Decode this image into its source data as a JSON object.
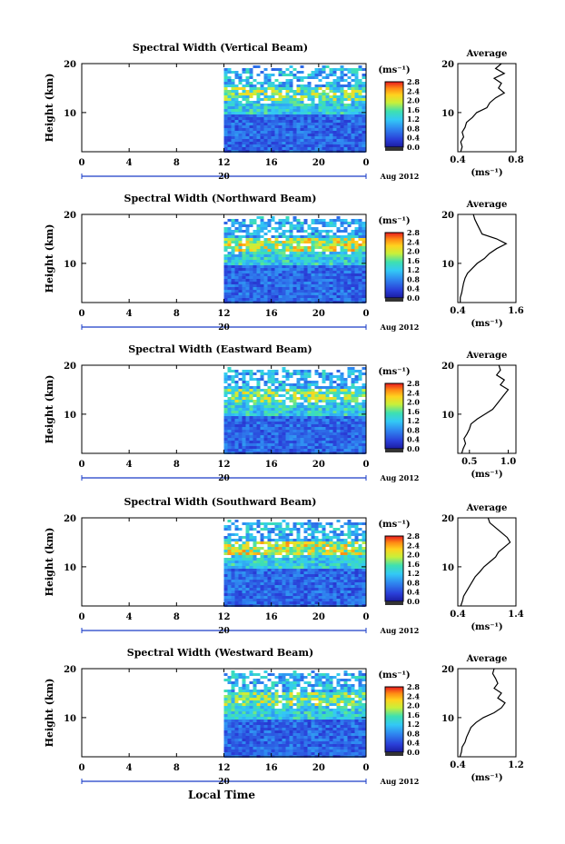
{
  "figure": {
    "bottom_xlabel": "Local Time",
    "date_label": "20",
    "month_label": "Aug 2012"
  },
  "chart_data": [
    {
      "type": "heatmap",
      "title": "Spectral Width (Vertical Beam)",
      "ylabel": "Height (km)",
      "xlim": [
        0,
        24
      ],
      "ylim": [
        2,
        20
      ],
      "x_ticks": [
        "0",
        "4",
        "8",
        "12",
        "16",
        "20",
        "0"
      ],
      "y_ticks": [
        "10",
        "20"
      ],
      "data_start_hour": 12,
      "colorbar": {
        "unit": "(ms⁻¹)",
        "ticks": [
          "0.0",
          "0.4",
          "0.8",
          "1.2",
          "1.6",
          "2.0",
          "2.4",
          "2.8"
        ]
      },
      "profile": {
        "title": "Average",
        "unit": "(ms⁻¹)",
        "xlim": [
          0.4,
          0.8
        ],
        "x_ticks": [
          "0.4",
          "0.8"
        ],
        "y_ticks": [
          "10",
          "20"
        ],
        "heights": [
          2,
          3,
          4,
          5,
          6,
          7,
          8,
          9,
          10,
          11,
          12,
          13,
          14,
          15,
          16,
          17,
          18,
          19,
          20
        ],
        "values": [
          0.42,
          0.43,
          0.42,
          0.44,
          0.43,
          0.45,
          0.46,
          0.5,
          0.53,
          0.6,
          0.62,
          0.66,
          0.72,
          0.68,
          0.7,
          0.65,
          0.72,
          0.66,
          0.7
        ]
      }
    },
    {
      "type": "heatmap",
      "title": "Spectral Width (Northward Beam)",
      "ylabel": "Height (km)",
      "xlim": [
        0,
        24
      ],
      "ylim": [
        2,
        20
      ],
      "x_ticks": [
        "0",
        "4",
        "8",
        "12",
        "16",
        "20",
        "0"
      ],
      "y_ticks": [
        "10",
        "20"
      ],
      "data_start_hour": 12,
      "colorbar": {
        "unit": "(ms⁻¹)",
        "ticks": [
          "0.0",
          "0.4",
          "0.8",
          "1.2",
          "1.6",
          "2.0",
          "2.4",
          "2.8"
        ]
      },
      "profile": {
        "title": "Average",
        "unit": "(ms⁻¹)",
        "xlim": [
          0.4,
          1.6
        ],
        "x_ticks": [
          "0.4",
          "1.6"
        ],
        "y_ticks": [
          "10",
          "20"
        ],
        "heights": [
          2,
          3,
          4,
          5,
          6,
          7,
          8,
          9,
          10,
          11,
          12,
          13,
          14,
          15,
          16,
          17,
          18,
          19,
          20
        ],
        "values": [
          0.45,
          0.45,
          0.48,
          0.5,
          0.52,
          0.55,
          0.6,
          0.7,
          0.8,
          0.95,
          1.05,
          1.2,
          1.4,
          1.2,
          0.9,
          0.85,
          0.8,
          0.75,
          0.72
        ]
      }
    },
    {
      "type": "heatmap",
      "title": "Spectral Width (Eastward Beam)",
      "ylabel": "Height (km)",
      "xlim": [
        0,
        24
      ],
      "ylim": [
        2,
        20
      ],
      "x_ticks": [
        "0",
        "4",
        "8",
        "12",
        "16",
        "20",
        "0"
      ],
      "y_ticks": [
        "10",
        "20"
      ],
      "data_start_hour": 12,
      "colorbar": {
        "unit": "(ms⁻¹)",
        "ticks": [
          "0.0",
          "0.4",
          "0.8",
          "1.2",
          "1.6",
          "2.0",
          "2.4",
          "2.8"
        ]
      },
      "profile": {
        "title": "Average",
        "unit": "(ms⁻¹)",
        "xlim": [
          0.35,
          1.1
        ],
        "x_ticks": [
          "0.5",
          "1.0"
        ],
        "y_ticks": [
          "10",
          "20"
        ],
        "heights": [
          2,
          3,
          4,
          5,
          6,
          7,
          8,
          9,
          10,
          11,
          12,
          13,
          14,
          15,
          16,
          17,
          18,
          19,
          20
        ],
        "values": [
          0.4,
          0.42,
          0.45,
          0.43,
          0.47,
          0.5,
          0.52,
          0.6,
          0.7,
          0.8,
          0.85,
          0.9,
          0.95,
          1.0,
          0.9,
          0.95,
          0.85,
          0.9,
          0.88
        ]
      }
    },
    {
      "type": "heatmap",
      "title": "Spectral Width (Southward Beam)",
      "ylabel": "Height (km)",
      "xlim": [
        0,
        24
      ],
      "ylim": [
        2,
        20
      ],
      "x_ticks": [
        "0",
        "4",
        "8",
        "12",
        "16",
        "20",
        "0"
      ],
      "y_ticks": [
        "10",
        "20"
      ],
      "data_start_hour": 12,
      "colorbar": {
        "unit": "(ms⁻¹)",
        "ticks": [
          "0.0",
          "0.4",
          "0.8",
          "1.2",
          "1.6",
          "2.0",
          "2.4",
          "2.8"
        ]
      },
      "profile": {
        "title": "Average",
        "unit": "(ms⁻¹)",
        "xlim": [
          0.4,
          1.4
        ],
        "x_ticks": [
          "0.4",
          "1.4"
        ],
        "y_ticks": [
          "10",
          "20"
        ],
        "heights": [
          2,
          3,
          4,
          5,
          6,
          7,
          8,
          9,
          10,
          11,
          12,
          13,
          14,
          15,
          16,
          17,
          18,
          19,
          20
        ],
        "values": [
          0.45,
          0.48,
          0.5,
          0.55,
          0.6,
          0.65,
          0.7,
          0.78,
          0.85,
          0.95,
          1.05,
          1.1,
          1.2,
          1.3,
          1.25,
          1.15,
          1.05,
          0.95,
          0.92
        ]
      }
    },
    {
      "type": "heatmap",
      "title": "Spectral Width (Westward Beam)",
      "ylabel": "Height (km)",
      "xlim": [
        0,
        24
      ],
      "ylim": [
        2,
        20
      ],
      "x_ticks": [
        "0",
        "4",
        "8",
        "12",
        "16",
        "20",
        "0"
      ],
      "y_ticks": [
        "10",
        "20"
      ],
      "data_start_hour": 12,
      "colorbar": {
        "unit": "(ms⁻¹)",
        "ticks": [
          "0.0",
          "0.4",
          "0.8",
          "1.2",
          "1.6",
          "2.0",
          "2.4",
          "2.8"
        ]
      },
      "profile": {
        "title": "Average",
        "unit": "(ms⁻¹)",
        "xlim": [
          0.4,
          1.2
        ],
        "x_ticks": [
          "0.4",
          "1.2"
        ],
        "y_ticks": [
          "10",
          "20"
        ],
        "heights": [
          2,
          3,
          4,
          5,
          6,
          7,
          8,
          9,
          10,
          11,
          12,
          13,
          14,
          15,
          16,
          17,
          18,
          19,
          20
        ],
        "values": [
          0.43,
          0.45,
          0.46,
          0.5,
          0.52,
          0.55,
          0.58,
          0.65,
          0.75,
          0.9,
          1.0,
          1.05,
          0.95,
          1.0,
          0.9,
          0.95,
          0.92,
          0.88,
          0.9
        ]
      }
    }
  ]
}
